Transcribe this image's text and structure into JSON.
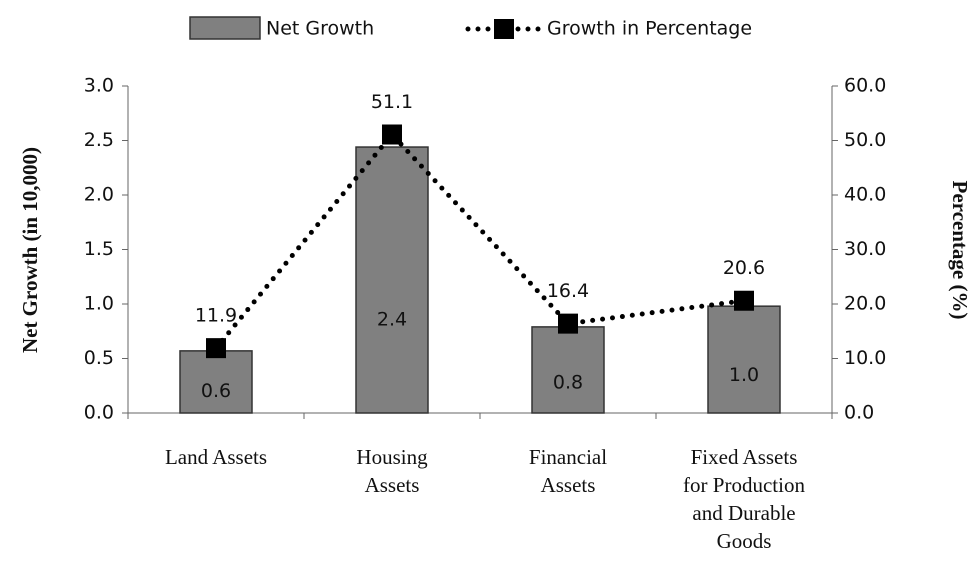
{
  "chart_data": {
    "type": "bar_line",
    "categories": [
      "Land Assets",
      "Housing\nAssets",
      "Financial\nAssets",
      "Fixed Assets\nfor Production\nand Durable\nGoods"
    ],
    "series": [
      {
        "name": "Net Growth",
        "type": "bar",
        "color": "#808080",
        "values": [
          0.57,
          2.44,
          0.79,
          0.98
        ],
        "value_labels": [
          "0.6",
          "2.4",
          "0.8",
          "1.0"
        ]
      },
      {
        "name": "Growth in Percentage",
        "type": "line",
        "axis": "y2",
        "color": "#000000",
        "values": [
          11.9,
          51.1,
          16.4,
          20.6
        ]
      }
    ],
    "y_label": "Net Growth (in 10,000)",
    "y2_label": "Percentage (%)",
    "ylim": [
      0,
      3
    ],
    "yticks": [
      {
        "value": 0,
        "label": "0.0"
      },
      0.5,
      {
        "value": 1,
        "label": "1.0"
      },
      1.5,
      {
        "value": 2,
        "label": "2.0"
      },
      2.5,
      {
        "value": 3,
        "label": "3.0"
      }
    ],
    "y2lim": [
      0,
      60
    ],
    "y2ticks": [
      {
        "value": 0,
        "label": "0.0"
      },
      {
        "value": 10,
        "label": "10.0"
      },
      {
        "value": 20,
        "label": "20.0"
      },
      {
        "value": 30,
        "label": "30.0"
      },
      {
        "value": 40,
        "label": "40.0"
      },
      {
        "value": 50,
        "label": "50.0"
      },
      {
        "value": 60,
        "label": "60.0"
      }
    ],
    "legend": "top"
  }
}
